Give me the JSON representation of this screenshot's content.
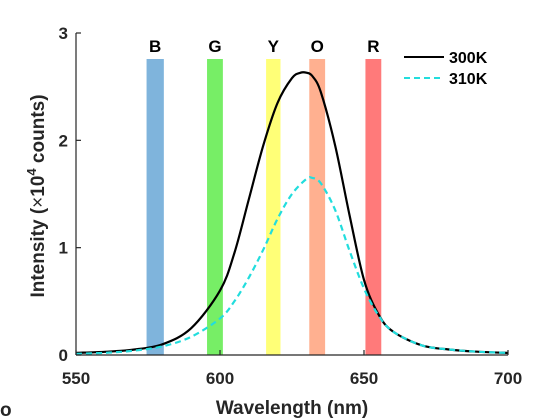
{
  "chart_data": {
    "type": "line",
    "title": "",
    "xlabel": "Wavelength (nm)",
    "ylabel_main": "Intensity (",
    "ylabel_times": "×",
    "ylabel_base": "10",
    "ylabel_exp": "4",
    "ylabel_tail": " counts)",
    "xlim": [
      550,
      700
    ],
    "ylim": [
      0,
      3
    ],
    "xticks": [
      550,
      600,
      650,
      700
    ],
    "yticks": [
      0,
      1,
      2,
      3
    ],
    "grid": false,
    "legend_position": "top-right",
    "bands": [
      {
        "label": "B",
        "from": 574.5,
        "to": 580.5,
        "color": "#7fb4dc"
      },
      {
        "label": "G",
        "from": 595.5,
        "to": 601.0,
        "color": "#77ee66"
      },
      {
        "label": "Y",
        "from": 616.0,
        "to": 621.0,
        "color": "#ffff77"
      },
      {
        "label": "O",
        "from": 631.0,
        "to": 636.5,
        "color": "#ffb090"
      },
      {
        "label": "R",
        "from": 650.5,
        "to": 656.0,
        "color": "#ff7a7a"
      }
    ],
    "series": [
      {
        "name": "300K",
        "color": "#000000",
        "dash": "solid",
        "x": [
          550,
          560,
          570,
          580,
          590,
          600,
          605,
          610,
          615,
          620,
          625,
          628,
          630,
          632,
          635,
          640,
          645,
          650,
          655,
          660,
          670,
          680,
          690,
          700
        ],
        "y": [
          0.02,
          0.03,
          0.05,
          0.1,
          0.25,
          0.6,
          0.95,
          1.45,
          1.95,
          2.35,
          2.58,
          2.63,
          2.63,
          2.6,
          2.45,
          1.95,
          1.3,
          0.7,
          0.38,
          0.22,
          0.09,
          0.05,
          0.03,
          0.02
        ]
      },
      {
        "name": "310K",
        "color": "#22dddd",
        "dash": "dashed",
        "x": [
          550,
          560,
          570,
          580,
          590,
          600,
          605,
          610,
          615,
          620,
          625,
          630,
          632,
          635,
          640,
          645,
          650,
          655,
          660,
          670,
          680,
          690,
          700
        ],
        "y": [
          0.01,
          0.02,
          0.04,
          0.08,
          0.17,
          0.34,
          0.5,
          0.72,
          0.98,
          1.27,
          1.5,
          1.64,
          1.65,
          1.6,
          1.35,
          0.97,
          0.62,
          0.37,
          0.22,
          0.09,
          0.05,
          0.03,
          0.02
        ]
      }
    ]
  },
  "stray_label": "o"
}
